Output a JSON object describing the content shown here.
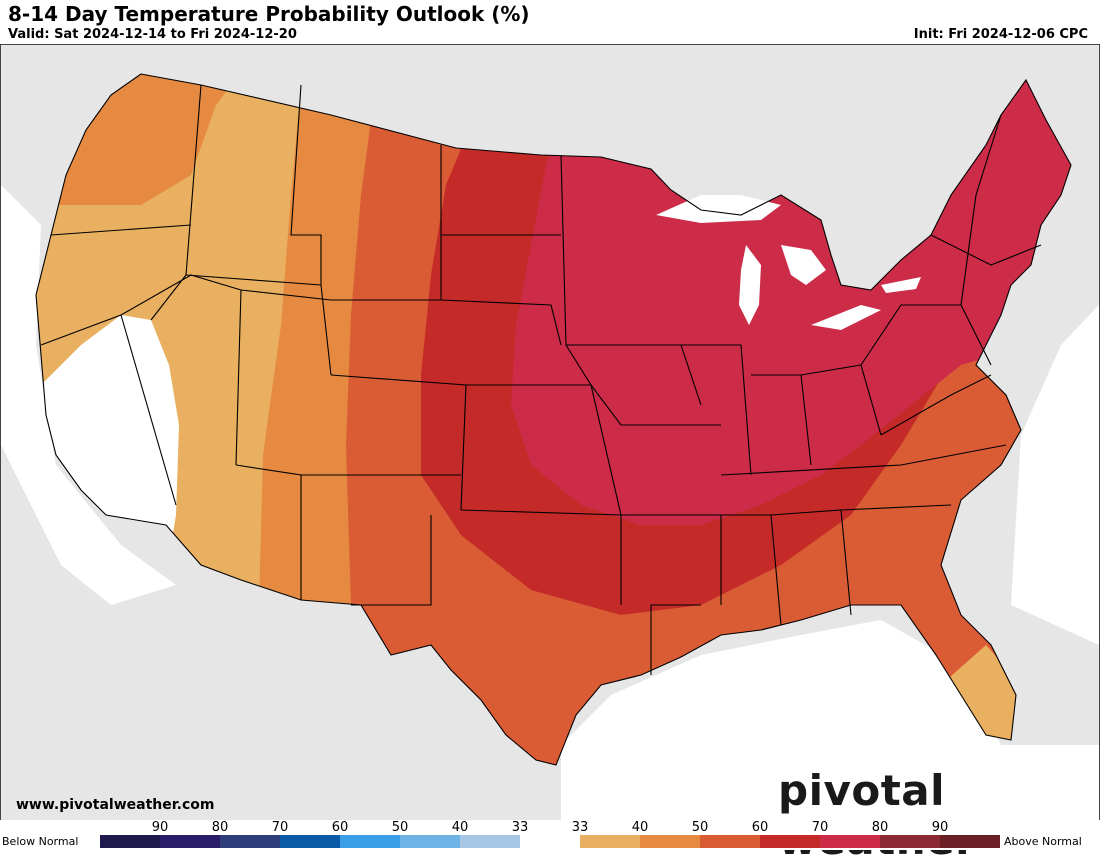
{
  "header": {
    "title": "8-14 Day Temperature Probability Outlook (%)",
    "valid": "Valid: Sat 2024-12-14 to Fri 2024-12-20",
    "init": "Init: Fri 2024-12-06 CPC"
  },
  "footer": {
    "website": "www.pivotalweather.com",
    "logo_text": "pivotal weather"
  },
  "legend": {
    "below_label": "Below Normal",
    "above_label": "Above Normal",
    "ticks": [
      "90",
      "80",
      "70",
      "60",
      "50",
      "40",
      "33",
      "33",
      "40",
      "50",
      "60",
      "70",
      "80",
      "90"
    ],
    "colors": [
      "#1e1a4d",
      "#2a1e6b",
      "#2c3d7a",
      "#0b5aa6",
      "#3a9ee6",
      "#6cb3e6",
      "#a7c6e3",
      "#ffffff",
      "#e8b060",
      "#e58a40",
      "#d95c35",
      "#c42a28",
      "#cc2c48",
      "#8b2a35",
      "#6a2025"
    ]
  },
  "map": {
    "colors": {
      "background": "#e6e6e6",
      "water": "#ffffff",
      "normal": "#ffffff",
      "above_33_40": "#e8b060",
      "above_40_50": "#e58a40",
      "above_50_60": "#d95c35",
      "above_60_70": "#c42a28",
      "above_70_80": "#cc2c48"
    }
  }
}
